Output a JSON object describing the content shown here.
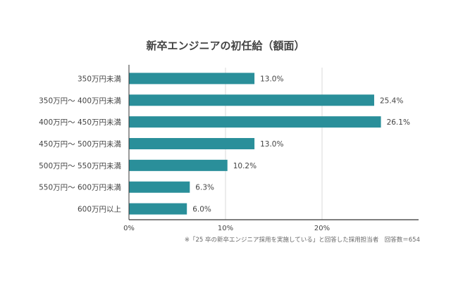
{
  "chart_data": {
    "type": "bar",
    "orientation": "horizontal",
    "title": "新卒エンジニアの初任給（額面）",
    "categories": [
      "350万円未満",
      "350万円〜 400万円未満",
      "400万円〜 450万円未満",
      "450万円〜 500万円未満",
      "500万円〜 550万円未満",
      "550万円〜 600万円未満",
      "600万円以上"
    ],
    "values": [
      13.0,
      25.4,
      26.1,
      13.0,
      10.2,
      6.3,
      6.0
    ],
    "value_labels": [
      "13.0%",
      "25.4%",
      "26.1%",
      "13.0%",
      "10.2%",
      "6.3%",
      "6.0%"
    ],
    "xlim": [
      0,
      30
    ],
    "xticks": [
      0,
      10,
      20
    ],
    "xtick_labels": [
      "0%",
      "10%",
      "20%"
    ],
    "xlabel": "",
    "ylabel": "",
    "grid": true,
    "bar_color": "#2a8f9a",
    "footnote": "※「25 卒の新卒エンジニア採用を実施している」と回答した採用担当者　回答数＝654"
  }
}
